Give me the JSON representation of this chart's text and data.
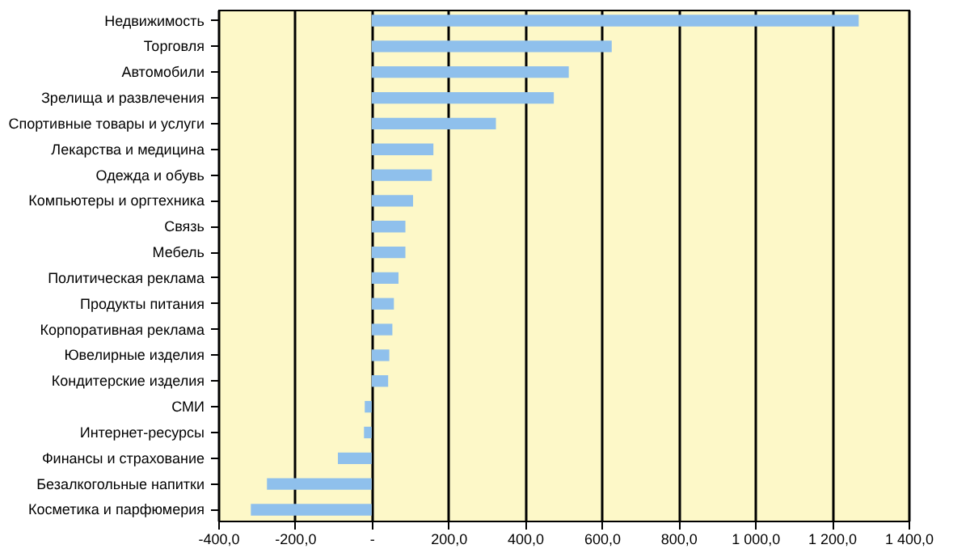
{
  "chart_data": {
    "type": "bar",
    "orientation": "horizontal",
    "categories": [
      "Недвижимость",
      "Торговля",
      "Автомобили",
      "Зрелища и развлечения",
      "Спортивные товары и услуги",
      "Лекарства и медицина",
      "Одежда и обувь",
      "Компьютеры и оргтехника",
      "Связь",
      "Мебель",
      "Политическая реклама",
      "Продукты питания",
      "Корпоративная реклама",
      "Ювелирные изделия",
      "Кондитерские изделия",
      "СМИ",
      "Интернет-ресурсы",
      "Финансы и страхование",
      "Безалкогольные напитки",
      "Косметика и парфюмерия"
    ],
    "values": [
      1270,
      626,
      514,
      475,
      324,
      161,
      157,
      108,
      88,
      88,
      70,
      58,
      54,
      46,
      43,
      -18,
      -20,
      -88,
      -273,
      -315
    ],
    "color": "#8fc0ec",
    "xlim": [
      -400,
      1400
    ],
    "xticks": [
      {
        "value": -400,
        "label": "-400,0"
      },
      {
        "value": -200,
        "label": "-200,0"
      },
      {
        "value": 0,
        "label": "-"
      },
      {
        "value": 200,
        "label": "200,0"
      },
      {
        "value": 400,
        "label": "400,0"
      },
      {
        "value": 600,
        "label": "600,0"
      },
      {
        "value": 800,
        "label": "800,0"
      },
      {
        "value": 1000,
        "label": "1 000,0"
      },
      {
        "value": 1200,
        "label": "1 200,0"
      },
      {
        "value": 1400,
        "label": "1 400,0"
      }
    ],
    "grid": "x"
  }
}
